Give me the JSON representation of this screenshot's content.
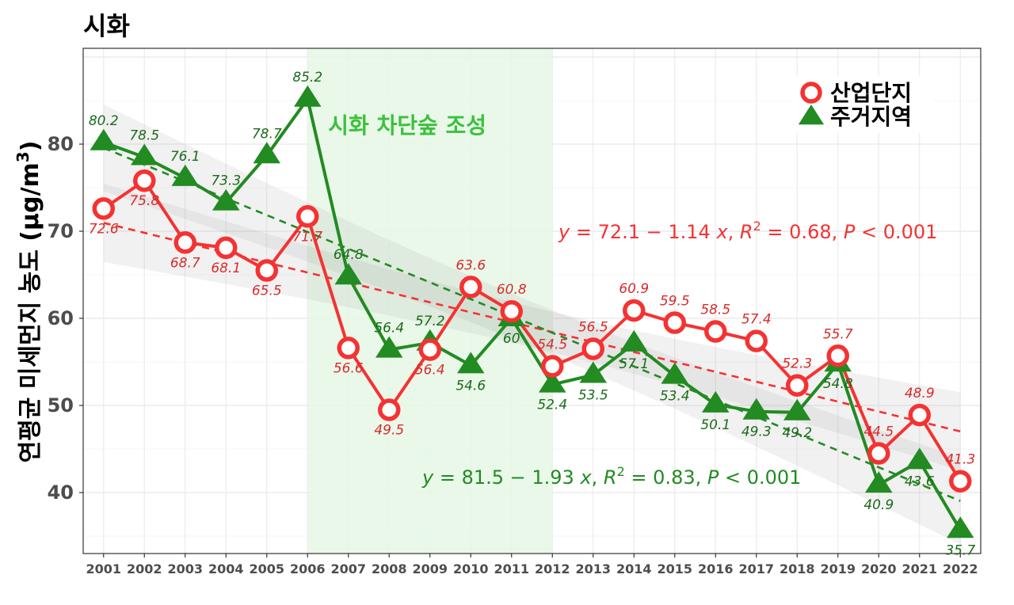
{
  "chart_data": {
    "type": "line",
    "title": "시화",
    "ylabel_main": "연평균 미세먼지 농도 (μg/m",
    "ylabel_sup": "3",
    "ylabel_close": ")",
    "ylim": [
      33,
      91
    ],
    "yticks": [
      40,
      50,
      60,
      70,
      80
    ],
    "xlim": [
      2000.5,
      2022.5
    ],
    "x": [
      2001,
      2002,
      2003,
      2004,
      2005,
      2006,
      2007,
      2008,
      2009,
      2010,
      2011,
      2012,
      2013,
      2014,
      2015,
      2016,
      2017,
      2018,
      2019,
      2020,
      2021,
      2022
    ],
    "highlight": {
      "from": 2006,
      "to": 2012,
      "label": "시화 차단숲 조성",
      "color": "#e5f7e5"
    },
    "series": [
      {
        "name": "산업단지",
        "marker": "circle",
        "color": "#f53232",
        "label_color": "#d92b2b",
        "values": [
          72.6,
          75.8,
          68.7,
          68.1,
          65.5,
          71.7,
          56.6,
          49.5,
          56.4,
          63.6,
          60.8,
          54.5,
          56.5,
          60.9,
          59.5,
          58.5,
          57.4,
          52.3,
          55.7,
          44.5,
          48.9,
          41.3
        ],
        "labels": [
          "72.6",
          "75.8",
          "68.7",
          "68.1",
          "65.5",
          "71.7",
          "56.6",
          "49.5",
          "56.4",
          "63.6",
          "60.8",
          "54.5",
          "56.5",
          "60.9",
          "59.5",
          "58.5",
          "57.4",
          "52.3",
          "55.7",
          "44.5",
          "48.9",
          "41.3"
        ],
        "label_pos": [
          "below",
          "below",
          "below",
          "below",
          "below",
          "below",
          "below",
          "below",
          "below",
          "above",
          "above",
          "above",
          "above",
          "above",
          "above",
          "above",
          "above",
          "above",
          "above",
          "above",
          "above",
          "above"
        ],
        "trend": {
          "intercept": 72.1,
          "slope": -1.14
        },
        "equation": {
          "y": "y",
          "eq1": " = 72.1 − 1.14 ",
          "x": "x",
          "sep": ", ",
          "R": "R",
          "sup": "2",
          "eq2": " = 0.68, ",
          "P": "P",
          "eq3": " < 0.001"
        }
      },
      {
        "name": "주거지역",
        "marker": "triangle",
        "color": "#228b22",
        "label_color": "#1a6b1a",
        "values": [
          80.2,
          78.5,
          76.1,
          73.3,
          78.7,
          85.2,
          64.8,
          56.4,
          57.2,
          54.6,
          60,
          52.4,
          53.5,
          57.1,
          53.4,
          50.1,
          49.3,
          49.2,
          54.8,
          40.9,
          43.6,
          35.7
        ],
        "labels": [
          "80.2",
          "78.5",
          "76.1",
          "73.3",
          "78.7",
          "85.2",
          "64.8",
          "56.4",
          "57.2",
          "54.6",
          "60",
          "52.4",
          "53.5",
          "57.1",
          "53.4",
          "50.1",
          "49.3",
          "49.2",
          "54.8",
          "40.9",
          "43.6",
          "35.7"
        ],
        "label_pos": [
          "above",
          "above",
          "above",
          "above",
          "above",
          "above",
          "above",
          "above",
          "above",
          "below",
          "below",
          "below",
          "below",
          "below",
          "below",
          "below",
          "below",
          "below",
          "below",
          "below",
          "below",
          "below"
        ],
        "trend": {
          "intercept": 81.5,
          "slope": -1.93
        },
        "equation": {
          "y": "y",
          "eq1": " = 81.5 − 1.93 ",
          "x": "x",
          "sep": ", ",
          "R": "R",
          "sup": "2",
          "eq2": " = 0.83, ",
          "P": "P",
          "eq3": " < 0.001"
        }
      }
    ],
    "legend": {
      "position": "top-right",
      "items": [
        "산업단지",
        "주거지역"
      ]
    },
    "grid": true
  }
}
